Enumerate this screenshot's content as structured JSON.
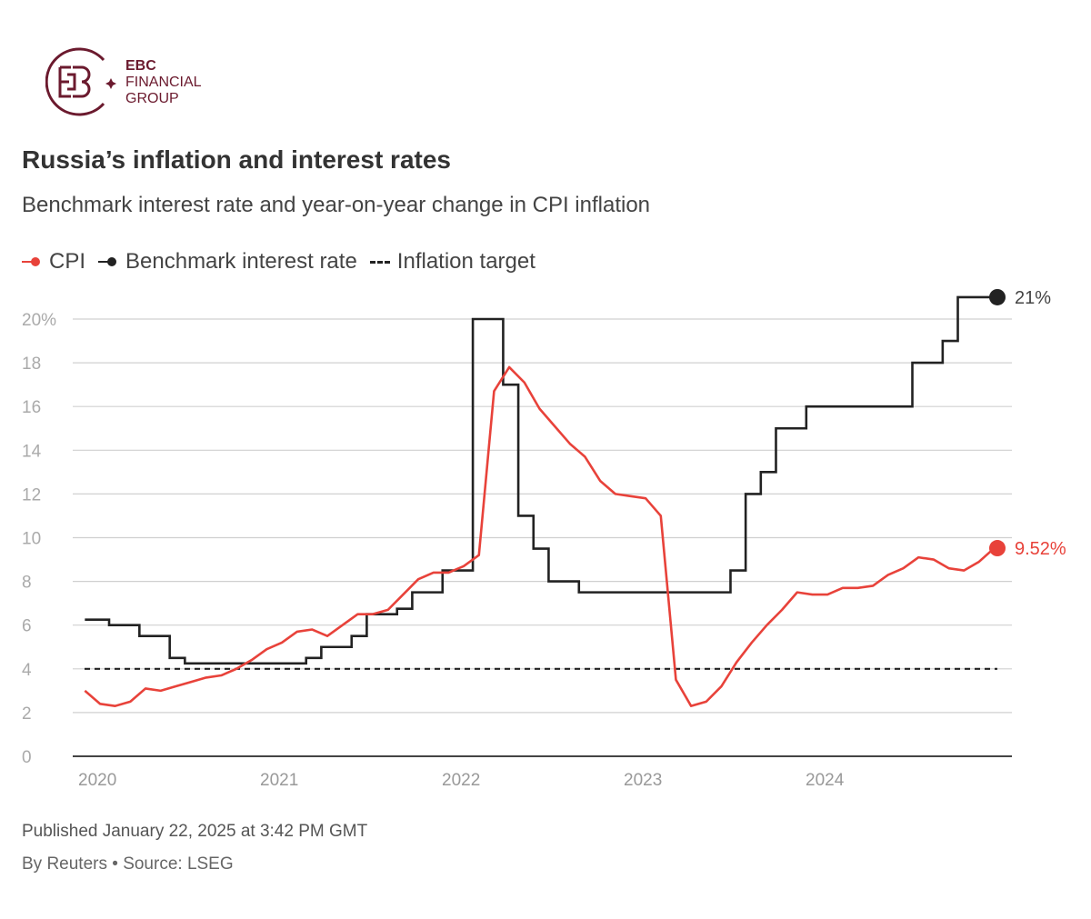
{
  "logo": {
    "line1": "EBC",
    "line2": "FINANCIAL",
    "line3": "GROUP",
    "color": "#6b1a2e"
  },
  "title": "Russia’s inflation and interest rates",
  "subtitle": "Benchmark interest rate and year-on-year change in CPI inflation",
  "footer": {
    "published": "Published January 22, 2025 at 3:42 PM GMT",
    "source": "By Reuters • Source: LSEG"
  },
  "chart_data": {
    "type": "line",
    "title": "Russia’s inflation and interest rates",
    "ylim": [
      0,
      20
    ],
    "yticks": [
      "0",
      "2",
      "4",
      "6",
      "8",
      "10",
      "12",
      "14",
      "16",
      "18",
      "20%"
    ],
    "xticks": [
      "2020",
      "2021",
      "2022",
      "2023",
      "2024"
    ],
    "grid": true,
    "legend_position": "top-left",
    "start_month": "2019-12",
    "series": [
      {
        "name": "CPI",
        "color": "#e8423a",
        "style": "line",
        "end_label": "9.52%",
        "values": [
          3.0,
          2.4,
          2.3,
          2.5,
          3.1,
          3.0,
          3.2,
          3.4,
          3.6,
          3.7,
          4.0,
          4.4,
          4.9,
          5.2,
          5.7,
          5.8,
          5.5,
          6.0,
          6.5,
          6.5,
          6.7,
          7.4,
          8.1,
          8.4,
          8.4,
          8.7,
          9.2,
          16.7,
          17.8,
          17.1,
          15.9,
          15.1,
          14.3,
          13.7,
          12.6,
          12.0,
          11.9,
          11.8,
          11.0,
          3.5,
          2.3,
          2.5,
          3.2,
          4.3,
          5.2,
          6.0,
          6.7,
          7.5,
          7.4,
          7.4,
          7.7,
          7.7,
          7.8,
          8.3,
          8.6,
          9.1,
          9.0,
          8.6,
          8.5,
          8.9,
          9.52
        ]
      },
      {
        "name": "Benchmark interest rate",
        "color": "#222222",
        "style": "step",
        "end_label": "21%",
        "values": [
          6.25,
          6.25,
          6.0,
          6.0,
          5.5,
          5.5,
          4.5,
          4.25,
          4.25,
          4.25,
          4.25,
          4.25,
          4.25,
          4.25,
          4.25,
          4.5,
          5.0,
          5.0,
          5.5,
          6.5,
          6.5,
          6.75,
          7.5,
          7.5,
          8.5,
          8.5,
          20,
          20,
          17,
          11,
          9.5,
          8,
          8,
          7.5,
          7.5,
          7.5,
          7.5,
          7.5,
          7.5,
          7.5,
          7.5,
          7.5,
          7.5,
          8.5,
          12,
          13,
          15,
          15,
          16,
          16,
          16,
          16,
          16,
          16,
          16,
          18,
          18,
          19,
          21,
          21,
          21
        ]
      },
      {
        "name": "Inflation target",
        "color": "#222222",
        "style": "dashed",
        "value": 4
      }
    ]
  }
}
